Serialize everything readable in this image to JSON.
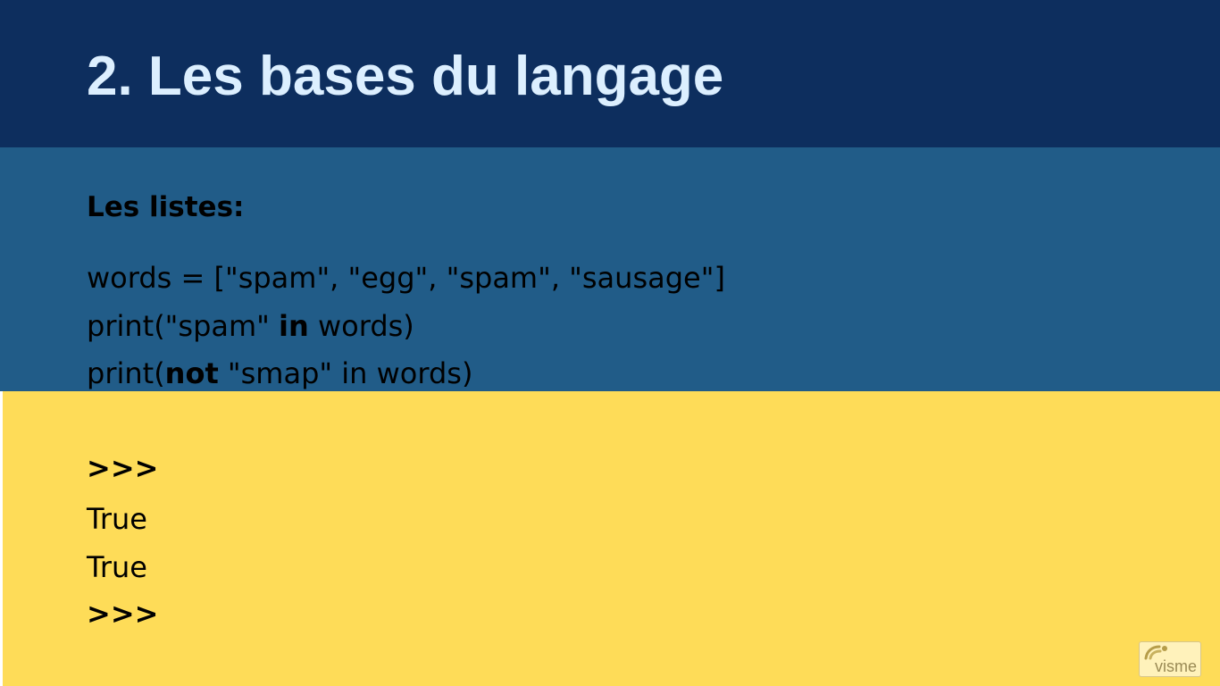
{
  "slide": {
    "title": "2. Les bases du langage",
    "section_heading": "Les listes:",
    "code_lines": [
      {
        "parts": [
          {
            "text": "words = [\"spam\", \"egg\", \"spam\", \"sausage\"]",
            "bold": false
          }
        ]
      },
      {
        "parts": [
          {
            "text": "print(\"spam\" ",
            "bold": false
          },
          {
            "text": "in",
            "bold": true
          },
          {
            "text": " words)",
            "bold": false
          }
        ]
      },
      {
        "parts": [
          {
            "text": "print(",
            "bold": false
          },
          {
            "text": "not",
            "bold": true
          },
          {
            "text": " \"smap\" in words)",
            "bold": false
          }
        ]
      }
    ],
    "output_lines": [
      ">>>",
      "True",
      "True",
      ">>>"
    ]
  },
  "logo": {
    "text": "visme",
    "icon": "visme-logo-icon"
  },
  "colors": {
    "header_bg": "#0d2e5e",
    "title_text": "#dcefff",
    "code_panel_bg": "#215c88",
    "output_panel_bg": "#fedc58",
    "body_text": "#000000",
    "logo_bg": "#fff2bb",
    "logo_text": "#9a8a55"
  }
}
